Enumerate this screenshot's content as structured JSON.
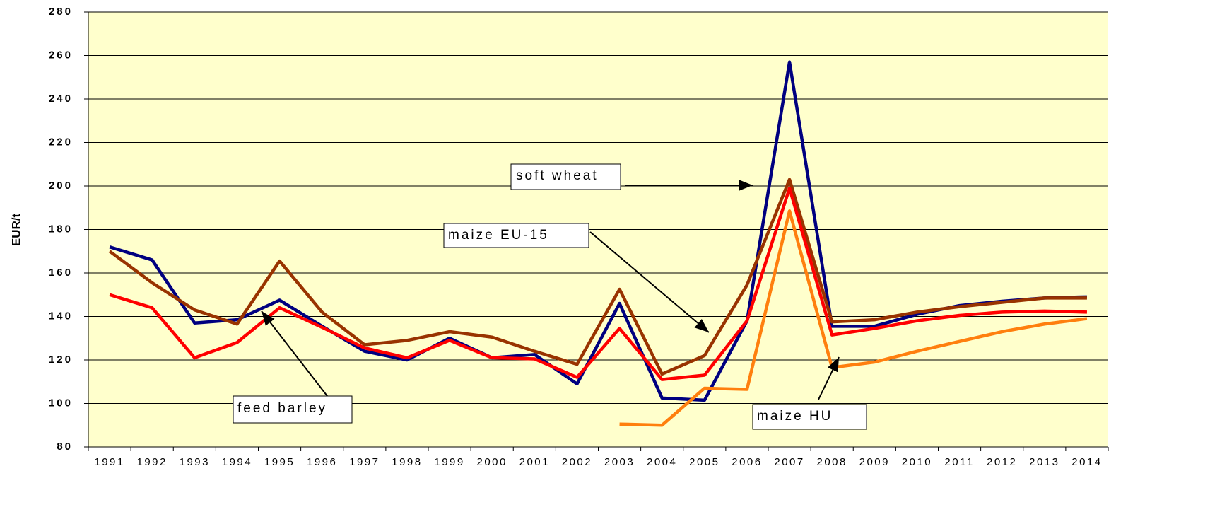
{
  "chart_data": {
    "type": "line",
    "y_label": "EUR/t",
    "categories": [
      "1991",
      "1992",
      "1993",
      "1994",
      "1995",
      "1996",
      "1997",
      "1998",
      "1999",
      "2000",
      "2001",
      "2002",
      "2003",
      "2004",
      "2005",
      "2006",
      "2007",
      "2008",
      "2009",
      "2010",
      "2011",
      "2012",
      "2013",
      "2014"
    ],
    "series": [
      {
        "name": "soft wheat",
        "color": "#000080",
        "values": [
          172,
          166,
          137,
          138.5,
          147.5,
          135.5,
          124,
          120,
          130,
          121,
          122.5,
          109,
          146,
          102.5,
          101.5,
          138,
          257,
          135.5,
          135.5,
          141,
          145,
          147,
          148.5,
          149
        ]
      },
      {
        "name": "maize EU-15",
        "color": "#993300",
        "values": [
          170,
          155.5,
          143,
          136.5,
          165.5,
          142,
          127,
          129,
          133,
          130.5,
          124,
          118,
          152.5,
          113.5,
          122,
          154.5,
          203,
          137.5,
          138.5,
          142,
          144.5,
          146.5,
          148.5,
          148.5
        ]
      },
      {
        "name": "feed barley",
        "color": "#ff0000",
        "values": [
          150,
          144,
          121,
          128,
          144,
          135,
          125.5,
          121,
          129,
          121,
          120.5,
          112,
          134.5,
          111,
          113,
          138,
          199,
          131.5,
          134.5,
          138,
          140.5,
          142,
          142.5,
          142
        ]
      },
      {
        "name": "maize HU",
        "color": "#ff7f0e",
        "values": [
          null,
          null,
          null,
          null,
          null,
          null,
          null,
          null,
          null,
          null,
          null,
          null,
          90.5,
          90,
          107,
          106.5,
          188.5,
          116.5,
          119,
          124,
          128.5,
          133,
          136.5,
          139
        ]
      }
    ],
    "ylim": [
      80,
      280
    ],
    "yticks": [
      80,
      100,
      120,
      140,
      160,
      180,
      200,
      220,
      240,
      260,
      280
    ],
    "grid": true,
    "background": "#ffffcc"
  }
}
